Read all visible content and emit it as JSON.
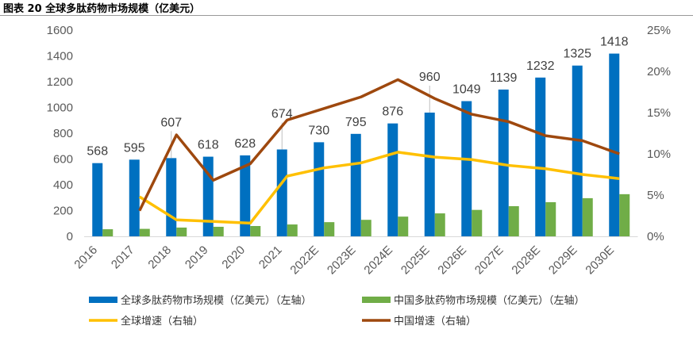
{
  "title": "图表 20  全球多肽药物市场规模（亿美元）",
  "chart_data": {
    "type": "bar+line",
    "title": "全球多肽药物市场规模（亿美元）",
    "categories": [
      "2016",
      "2017",
      "2018",
      "2019",
      "2020",
      "2021",
      "2022E",
      "2023E",
      "2024E",
      "2025E",
      "2026E",
      "2027E",
      "2028E",
      "2029E",
      "2030E"
    ],
    "left_axis": {
      "ylim": [
        0,
        1600
      ],
      "ticks": [
        "0",
        "200",
        "400",
        "600",
        "800",
        "1000",
        "1200",
        "1400",
        "1600"
      ]
    },
    "right_axis": {
      "ylim": [
        0,
        25
      ],
      "ticks": [
        "0%",
        "5%",
        "10%",
        "15%",
        "20%",
        "25%"
      ]
    },
    "series": [
      {
        "name": "全球多肽药物市场规模（亿美元）（左轴）",
        "type": "bar",
        "axis": "left",
        "color": "#0070C0",
        "values": [
          568,
          595,
          607,
          618,
          628,
          674,
          730,
          795,
          876,
          960,
          1049,
          1139,
          1232,
          1325,
          1418
        ],
        "labels": [
          "568",
          "595",
          "607",
          "618",
          "628",
          "674",
          "730",
          "795",
          "876",
          "960",
          "1049",
          "1139",
          "1232",
          "1325",
          "1418"
        ]
      },
      {
        "name": "中国多肽药物市场规模（亿美元）（左轴）",
        "type": "bar",
        "axis": "left",
        "color": "#70AD47",
        "values": [
          55,
          58,
          68,
          74,
          80,
          92,
          110,
          128,
          153,
          178,
          205,
          234,
          265,
          296,
          327
        ]
      },
      {
        "name": "全球增速（右轴）",
        "type": "line",
        "axis": "right",
        "color": "#FFC000",
        "values": [
          null,
          4.8,
          2.0,
          1.8,
          1.6,
          7.3,
          8.3,
          8.9,
          10.2,
          9.6,
          9.3,
          8.6,
          8.2,
          7.5,
          7.0
        ]
      },
      {
        "name": "中国增速（右轴）",
        "type": "line",
        "axis": "right",
        "color": "#9E480E",
        "values": [
          null,
          3.1,
          12.3,
          6.8,
          8.8,
          14.1,
          15.5,
          16.9,
          19.0,
          16.7,
          14.8,
          13.9,
          12.2,
          11.6,
          10.0
        ]
      }
    ],
    "grid": false,
    "legend": "bottom"
  }
}
